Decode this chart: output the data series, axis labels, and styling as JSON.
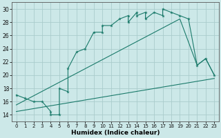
{
  "background_color": "#cce8e8",
  "grid_color": "#aacccc",
  "line_color": "#1a7a6a",
  "xlabel": "Humidex (Indice chaleur)",
  "xlim": [
    -0.5,
    23.5
  ],
  "ylim": [
    13,
    31
  ],
  "xticks": [
    0,
    1,
    2,
    3,
    4,
    5,
    6,
    7,
    8,
    9,
    10,
    11,
    12,
    13,
    14,
    15,
    16,
    17,
    18,
    19,
    20,
    21,
    22,
    23
  ],
  "yticks": [
    14,
    16,
    18,
    20,
    22,
    24,
    26,
    28,
    30
  ],
  "series1_x": [
    0,
    1,
    2,
    3,
    4,
    4,
    5,
    5,
    6,
    6,
    7,
    8,
    9,
    10,
    10,
    11,
    12,
    13,
    13,
    14,
    14,
    15,
    15,
    16,
    17,
    17,
    18,
    19,
    20,
    21,
    22,
    23
  ],
  "series1_y": [
    17,
    16.5,
    16,
    16,
    14.5,
    14,
    14,
    18,
    17.5,
    21,
    23.5,
    24,
    26.5,
    26.5,
    27.5,
    27.5,
    28.5,
    29,
    28,
    29.5,
    29,
    29.5,
    28.5,
    29.5,
    29,
    30,
    29.5,
    29,
    28.5,
    21.5,
    22.5,
    20
  ],
  "series2_x": [
    0,
    23
  ],
  "series2_y": [
    14.5,
    19.5
  ],
  "series3_x": [
    0,
    19,
    20,
    21,
    22,
    23
  ],
  "series3_y": [
    15.5,
    28.5,
    25,
    21.5,
    22.5,
    20
  ]
}
